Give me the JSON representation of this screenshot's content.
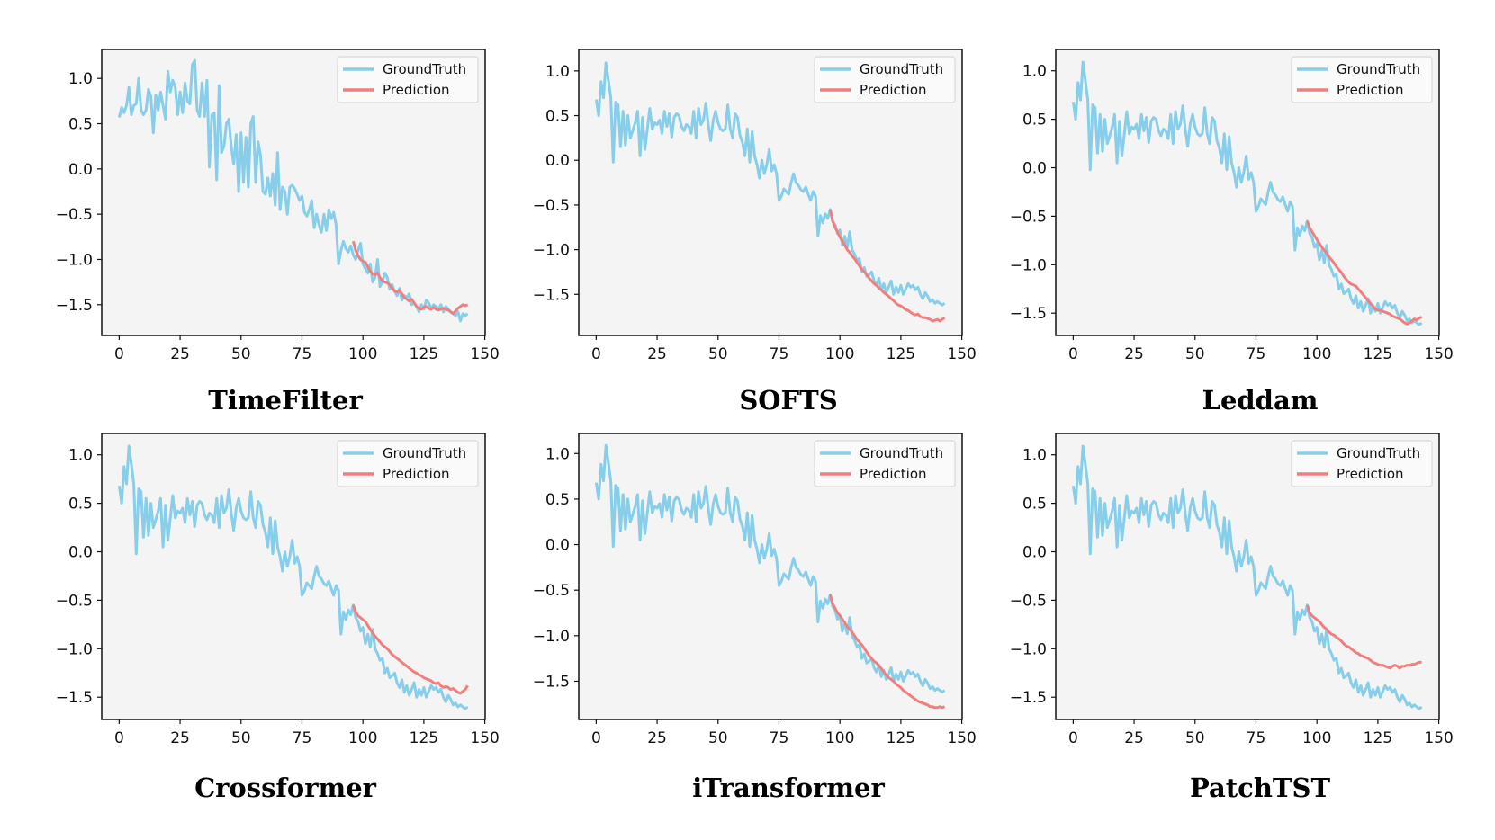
{
  "colors": {
    "ground_truth": "#87CEEB",
    "prediction": "#F08080",
    "axes_bg": "#F4F4F4"
  },
  "legend_labels": [
    "GroundTruth",
    "Prediction"
  ],
  "chart_data": [
    {
      "type": "line",
      "title": "TimeFilter",
      "xlim": [
        -7.15,
        150.15
      ],
      "ylim": [
        -1.84,
        1.32
      ],
      "xticks": [
        0,
        25,
        50,
        75,
        100,
        125,
        150
      ],
      "yticks": [
        1.0,
        0.5,
        0.0,
        -0.5,
        -1.0,
        -1.5
      ],
      "legend": "top-right",
      "grid": false,
      "series": [
        {
          "name": "GroundTruth",
          "x_start": 0,
          "values": [
            0.57,
            0.68,
            0.62,
            0.7,
            0.9,
            0.6,
            0.7,
            0.72,
            1.0,
            0.65,
            0.6,
            0.65,
            0.88,
            0.8,
            0.4,
            0.82,
            0.65,
            0.85,
            0.7,
            0.55,
            1.08,
            0.85,
            0.98,
            0.9,
            0.6,
            0.85,
            0.62,
            0.95,
            0.75,
            0.72,
            1.15,
            1.2,
            0.65,
            0.58,
            0.95,
            0.58,
            0.98,
            0.02,
            0.6,
            0.62,
            -0.12,
            0.92,
            0.18,
            0.25,
            0.5,
            0.55,
            0.25,
            0.05,
            0.38,
            -0.25,
            0.4,
            -0.15,
            0.35,
            -0.2,
            0.5,
            0.58,
            -0.15,
            0.3,
            0.15,
            -0.25,
            -0.28,
            -0.1,
            -0.3,
            -0.05,
            -0.4,
            0.18,
            -0.45,
            -0.2,
            -0.25,
            -0.5,
            -0.2,
            -0.18,
            -0.22,
            -0.28,
            -0.35,
            -0.3,
            -0.48,
            -0.52,
            -0.45,
            -0.35,
            -0.65,
            -0.5,
            -0.62,
            -0.7,
            -0.5,
            -0.68,
            -0.45,
            -0.55,
            -0.48,
            -0.62,
            -1.05,
            -0.9,
            -0.8,
            -0.88,
            -0.92,
            -0.85,
            -0.95,
            -1.0,
            -0.9,
            -0.82,
            -1.05,
            -1.1,
            -1.15,
            -1.05,
            -1.25,
            -1.2,
            -1.0,
            -1.3,
            -1.25,
            -1.15,
            -1.2,
            -1.33,
            -1.28,
            -1.35,
            -1.4,
            -1.32,
            -1.45,
            -1.4,
            -1.42,
            -1.38,
            -1.5,
            -1.48,
            -1.52,
            -1.58,
            -1.5,
            -1.55,
            -1.45,
            -1.48,
            -1.55,
            -1.5,
            -1.52,
            -1.55,
            -1.5,
            -1.58,
            -1.52,
            -1.55,
            -1.58,
            -1.6,
            -1.62,
            -1.58,
            -1.68,
            -1.6,
            -1.62,
            -1.6
          ]
        },
        {
          "name": "Prediction",
          "x_start": 96,
          "values": [
            -0.8,
            -0.9,
            -0.96,
            -1.0,
            -1.02,
            -1.03,
            -1.08,
            -1.13,
            -1.16,
            -1.17,
            -1.15,
            -1.2,
            -1.24,
            -1.25,
            -1.26,
            -1.28,
            -1.32,
            -1.35,
            -1.36,
            -1.34,
            -1.38,
            -1.42,
            -1.44,
            -1.46,
            -1.44,
            -1.48,
            -1.52,
            -1.54,
            -1.55,
            -1.53,
            -1.52,
            -1.54,
            -1.55,
            -1.53,
            -1.55,
            -1.56,
            -1.55,
            -1.54,
            -1.55,
            -1.56,
            -1.58,
            -1.6,
            -1.57,
            -1.54,
            -1.52,
            -1.5,
            -1.51,
            -1.5
          ]
        }
      ]
    },
    {
      "type": "line",
      "title": "SOFTS",
      "xlim": [
        -7.15,
        150.15
      ],
      "ylim": [
        -1.96,
        1.24
      ],
      "xticks": [
        0,
        25,
        50,
        75,
        100,
        125,
        150
      ],
      "yticks": [
        1.0,
        0.5,
        0.0,
        -0.5,
        -1.0,
        -1.5
      ],
      "legend": "top-right",
      "grid": false,
      "series": [
        {
          "name": "GroundTruth",
          "x_start": 0,
          "shared": "gt_common"
        },
        {
          "name": "Prediction",
          "x_start": 96,
          "values": [
            -0.55,
            -0.68,
            -0.75,
            -0.8,
            -0.86,
            -0.9,
            -0.95,
            -1.0,
            -1.03,
            -1.07,
            -1.1,
            -1.14,
            -1.18,
            -1.22,
            -1.25,
            -1.28,
            -1.32,
            -1.35,
            -1.38,
            -1.4,
            -1.43,
            -1.45,
            -1.48,
            -1.5,
            -1.52,
            -1.55,
            -1.57,
            -1.6,
            -1.62,
            -1.63,
            -1.65,
            -1.67,
            -1.68,
            -1.7,
            -1.72,
            -1.73,
            -1.72,
            -1.75,
            -1.76,
            -1.76,
            -1.77,
            -1.78,
            -1.8,
            -1.79,
            -1.78,
            -1.8,
            -1.78,
            -1.76
          ]
        }
      ]
    },
    {
      "type": "line",
      "title": "Leddam",
      "xlim": [
        -7.15,
        150.15
      ],
      "ylim": [
        -1.73,
        1.22
      ],
      "xticks": [
        0,
        25,
        50,
        75,
        100,
        125,
        150
      ],
      "yticks": [
        1.0,
        0.5,
        0.0,
        -0.5,
        -1.0,
        -1.5
      ],
      "legend": "top-right",
      "grid": false,
      "series": [
        {
          "name": "GroundTruth",
          "x_start": 0,
          "shared": "gt_common"
        },
        {
          "name": "Prediction",
          "x_start": 96,
          "values": [
            -0.55,
            -0.62,
            -0.66,
            -0.7,
            -0.74,
            -0.78,
            -0.82,
            -0.85,
            -0.88,
            -0.92,
            -0.95,
            -0.98,
            -1.02,
            -1.05,
            -1.08,
            -1.12,
            -1.15,
            -1.18,
            -1.2,
            -1.21,
            -1.22,
            -1.25,
            -1.28,
            -1.31,
            -1.34,
            -1.37,
            -1.4,
            -1.43,
            -1.46,
            -1.47,
            -1.47,
            -1.48,
            -1.49,
            -1.5,
            -1.51,
            -1.53,
            -1.54,
            -1.55,
            -1.56,
            -1.58,
            -1.6,
            -1.61,
            -1.6,
            -1.58,
            -1.56,
            -1.57,
            -1.55,
            -1.54
          ]
        }
      ]
    },
    {
      "type": "line",
      "title": "Crossformer",
      "xlim": [
        -7.15,
        150.15
      ],
      "ylim": [
        -1.73,
        1.22
      ],
      "xticks": [
        0,
        25,
        50,
        75,
        100,
        125,
        150
      ],
      "yticks": [
        1.0,
        0.5,
        0.0,
        -0.5,
        -1.0,
        -1.5
      ],
      "legend": "top-right",
      "grid": false,
      "series": [
        {
          "name": "GroundTruth",
          "x_start": 0,
          "shared": "gt_common"
        },
        {
          "name": "Prediction",
          "x_start": 96,
          "values": [
            -0.55,
            -0.62,
            -0.66,
            -0.68,
            -0.7,
            -0.72,
            -0.76,
            -0.8,
            -0.84,
            -0.87,
            -0.9,
            -0.93,
            -0.96,
            -0.98,
            -1.0,
            -1.03,
            -1.06,
            -1.08,
            -1.1,
            -1.12,
            -1.14,
            -1.16,
            -1.18,
            -1.2,
            -1.22,
            -1.24,
            -1.25,
            -1.27,
            -1.28,
            -1.3,
            -1.31,
            -1.32,
            -1.33,
            -1.35,
            -1.36,
            -1.35,
            -1.38,
            -1.4,
            -1.39,
            -1.4,
            -1.42,
            -1.41,
            -1.43,
            -1.45,
            -1.46,
            -1.44,
            -1.42,
            -1.38
          ]
        }
      ]
    },
    {
      "type": "line",
      "title": "iTransformer",
      "xlim": [
        -7.15,
        150.15
      ],
      "ylim": [
        -1.92,
        1.22
      ],
      "xticks": [
        0,
        25,
        50,
        75,
        100,
        125,
        150
      ],
      "yticks": [
        1.0,
        0.5,
        0.0,
        -0.5,
        -1.0,
        -1.5
      ],
      "legend": "top-right",
      "grid": false,
      "series": [
        {
          "name": "GroundTruth",
          "x_start": 0,
          "shared": "gt_common"
        },
        {
          "name": "Prediction",
          "x_start": 96,
          "values": [
            -0.55,
            -0.65,
            -0.7,
            -0.75,
            -0.78,
            -0.82,
            -0.86,
            -0.9,
            -0.93,
            -0.96,
            -1.0,
            -1.04,
            -1.07,
            -1.1,
            -1.14,
            -1.18,
            -1.22,
            -1.25,
            -1.28,
            -1.3,
            -1.33,
            -1.36,
            -1.4,
            -1.43,
            -1.46,
            -1.48,
            -1.5,
            -1.53,
            -1.55,
            -1.57,
            -1.6,
            -1.62,
            -1.64,
            -1.66,
            -1.68,
            -1.7,
            -1.72,
            -1.73,
            -1.74,
            -1.75,
            -1.76,
            -1.78,
            -1.78,
            -1.79,
            -1.79,
            -1.78,
            -1.79,
            -1.78
          ]
        }
      ]
    },
    {
      "type": "line",
      "title": "PatchTST",
      "xlim": [
        -7.15,
        150.15
      ],
      "ylim": [
        -1.73,
        1.22
      ],
      "xticks": [
        0,
        25,
        50,
        75,
        100,
        125,
        150
      ],
      "yticks": [
        1.0,
        0.5,
        0.0,
        -0.5,
        -1.0,
        -1.5
      ],
      "legend": "top-right",
      "grid": false,
      "series": [
        {
          "name": "GroundTruth",
          "x_start": 0,
          "shared": "gt_common"
        },
        {
          "name": "Prediction",
          "x_start": 96,
          "values": [
            -0.55,
            -0.63,
            -0.66,
            -0.68,
            -0.7,
            -0.72,
            -0.75,
            -0.78,
            -0.8,
            -0.83,
            -0.85,
            -0.86,
            -0.88,
            -0.9,
            -0.92,
            -0.95,
            -0.97,
            -0.98,
            -1.0,
            -1.02,
            -1.04,
            -1.05,
            -1.07,
            -1.08,
            -1.09,
            -1.1,
            -1.12,
            -1.14,
            -1.15,
            -1.16,
            -1.17,
            -1.17,
            -1.18,
            -1.19,
            -1.2,
            -1.18,
            -1.17,
            -1.18,
            -1.2,
            -1.18,
            -1.18,
            -1.17,
            -1.17,
            -1.16,
            -1.16,
            -1.15,
            -1.14,
            -1.14
          ]
        }
      ]
    }
  ],
  "gt_common": [
    0.68,
    0.5,
    0.88,
    0.7,
    1.09,
    0.9,
    0.7,
    -0.02,
    0.65,
    0.62,
    0.15,
    0.55,
    0.17,
    0.5,
    0.25,
    0.33,
    0.42,
    0.55,
    0.05,
    0.48,
    0.12,
    0.35,
    0.58,
    0.35,
    0.42,
    0.4,
    0.45,
    0.3,
    0.55,
    0.38,
    0.52,
    0.26,
    0.48,
    0.52,
    0.5,
    0.38,
    0.33,
    0.4,
    0.38,
    0.3,
    0.55,
    0.25,
    0.58,
    0.4,
    0.45,
    0.64,
    0.4,
    0.22,
    0.45,
    0.55,
    0.42,
    0.35,
    0.33,
    0.35,
    0.62,
    0.35,
    0.25,
    0.52,
    0.48,
    0.28,
    0.2,
    0.05,
    0.35,
    -0.02,
    0.32,
    0.05,
    -0.05,
    -0.2,
    0.0,
    -0.15,
    -0.05,
    0.12,
    -0.12,
    -0.05,
    -0.15,
    -0.45,
    -0.4,
    -0.32,
    -0.35,
    -0.38,
    -0.25,
    -0.15,
    -0.25,
    -0.28,
    -0.33,
    -0.35,
    -0.3,
    -0.38,
    -0.45,
    -0.35,
    -0.4,
    -0.85,
    -0.62,
    -0.7,
    -0.6,
    -0.65,
    -0.55,
    -0.68,
    -0.72,
    -0.82,
    -0.78,
    -0.95,
    -0.85,
    -0.98,
    -0.8,
    -1.0,
    -1.05,
    -1.12,
    -1.1,
    -1.25,
    -1.2,
    -1.3,
    -1.28,
    -1.25,
    -1.35,
    -1.4,
    -1.32,
    -1.45,
    -1.38,
    -1.48,
    -1.42,
    -1.35,
    -1.5,
    -1.42,
    -1.48,
    -1.4,
    -1.5,
    -1.44,
    -1.38,
    -1.42,
    -1.4,
    -1.45,
    -1.42,
    -1.5,
    -1.55,
    -1.48,
    -1.52,
    -1.58,
    -1.56,
    -1.6,
    -1.58,
    -1.6,
    -1.62,
    -1.6
  ]
}
